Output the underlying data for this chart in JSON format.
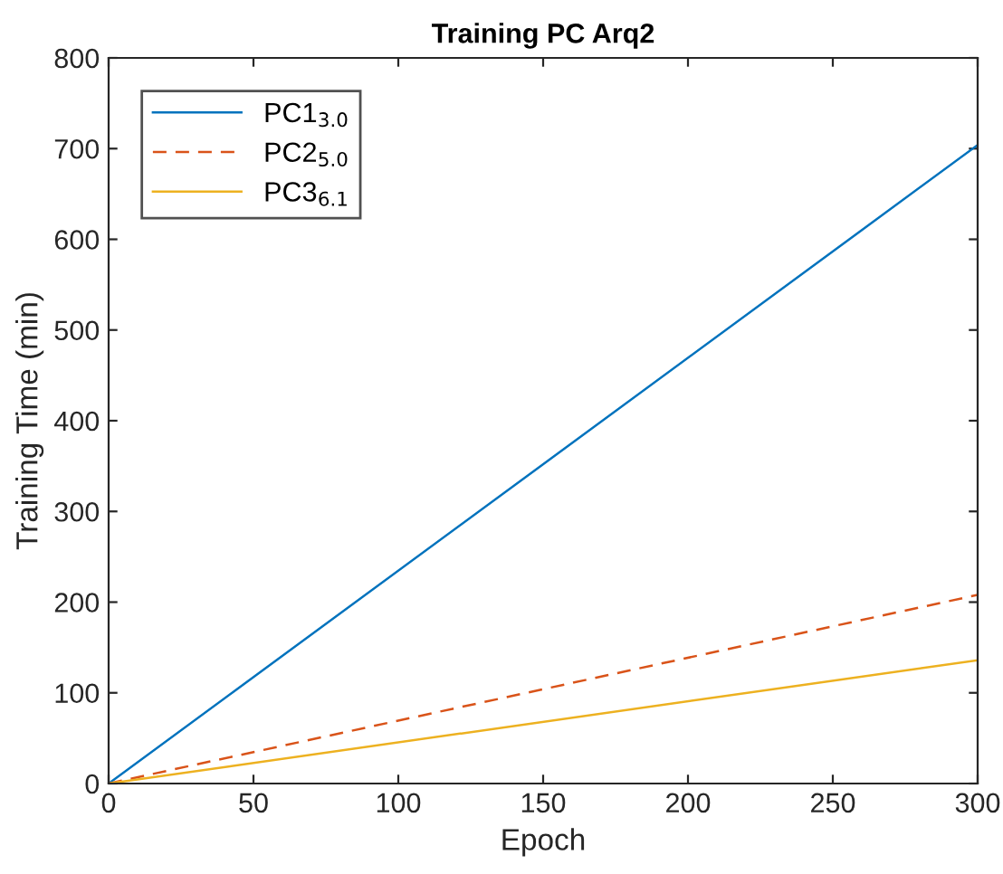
{
  "chart_data": {
    "type": "line",
    "title": "Training PC Arq2",
    "xlabel": "Epoch",
    "ylabel": "Training Time (min)",
    "x": [
      0,
      300
    ],
    "series": [
      {
        "name": "PC1$_{3.0}$",
        "color": "#0072bd",
        "line_style": "solid",
        "values": [
          0,
          704
        ]
      },
      {
        "name": "PC2$_{5.0}$",
        "color": "#d95319",
        "line_style": "dashed",
        "values": [
          0,
          208
        ]
      },
      {
        "name": "PC3$_{6.1}$",
        "color": "#edb120",
        "line_style": "solid",
        "values": [
          0,
          136
        ]
      }
    ],
    "xlim": [
      0,
      300
    ],
    "xticks": [
      0,
      50,
      100,
      150,
      200,
      250,
      300
    ],
    "ylim": [
      0,
      800
    ],
    "yticks": [
      0,
      100,
      200,
      300,
      400,
      500,
      600,
      700,
      800
    ],
    "grid": false,
    "legend": "top left",
    "marker": "none"
  }
}
